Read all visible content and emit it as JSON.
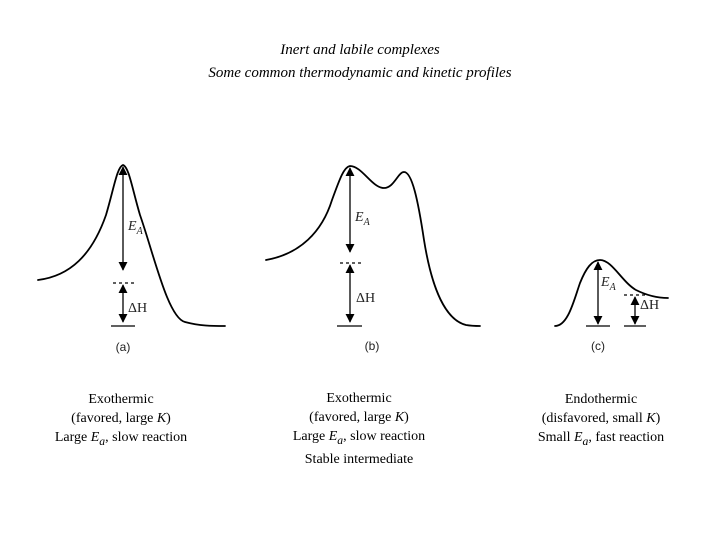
{
  "title": {
    "line1": "Inert and labile complexes",
    "line2": "Some common thermodynamic and kinetic profiles"
  },
  "panels": [
    {
      "id": "a",
      "label": "(a)",
      "ea_symbol": "E",
      "ea_subscript": "A",
      "dh_label": "ΔH",
      "caption": {
        "line1": "Exothermic",
        "line2_prefix": "(favored, large ",
        "line2_var": "K",
        "line2_suffix": ")",
        "line3_prefix": "Large ",
        "line3_var": "E",
        "line3_sub": "a",
        "line3_suffix": ", slow reaction"
      }
    },
    {
      "id": "b",
      "label": "(b)",
      "ea_symbol": "E",
      "ea_subscript": "A",
      "dh_label": "ΔH",
      "caption": {
        "line1": "Exothermic",
        "line2_prefix": "(favored, large ",
        "line2_var": "K",
        "line2_suffix": ")",
        "line3_prefix": "Large ",
        "line3_var": "E",
        "line3_sub": "a",
        "line3_suffix": ", slow reaction",
        "line4": "Stable intermediate"
      }
    },
    {
      "id": "c",
      "label": "(c)",
      "ea_symbol": "E",
      "ea_subscript": "A",
      "dh_label": "ΔH",
      "caption": {
        "line1": "Endothermic",
        "line2_prefix": "(disfavored, small ",
        "line2_var": "K",
        "line2_suffix": ")",
        "line3_prefix": "Small ",
        "line3_var": "E",
        "line3_sub": "a",
        "line3_suffix": ", fast reaction"
      }
    }
  ]
}
